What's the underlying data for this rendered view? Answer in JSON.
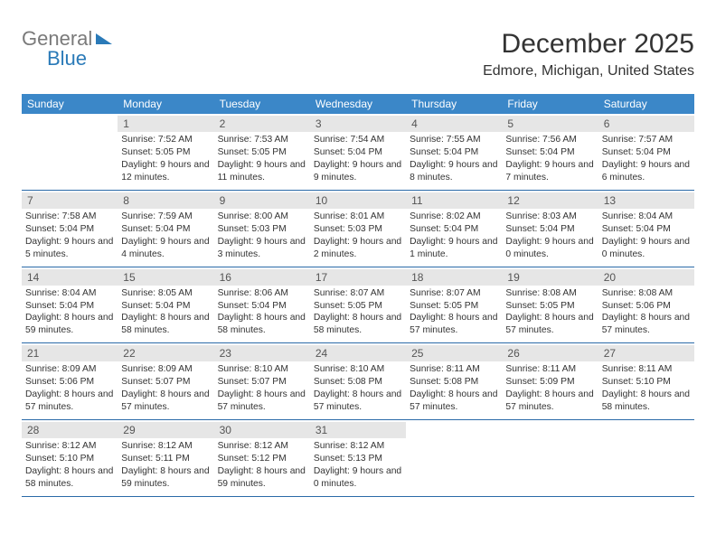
{
  "brand": {
    "line1": "General",
    "line2": "Blue"
  },
  "title": "December 2025",
  "location": "Edmore, Michigan, United States",
  "dayHeaders": [
    "Sunday",
    "Monday",
    "Tuesday",
    "Wednesday",
    "Thursday",
    "Friday",
    "Saturday"
  ],
  "colors": {
    "headerBg": "#3b87c8",
    "headerText": "#ffffff",
    "dayNumBg": "#e6e6e6",
    "rowBorder": "#2a6aa8",
    "text": "#333333",
    "logoGray": "#7a7a7a",
    "logoBlue": "#2a7ab8",
    "background": "#ffffff"
  },
  "weeks": [
    [
      {
        "n": "",
        "empty": true
      },
      {
        "n": "1",
        "sr": "Sunrise: 7:52 AM",
        "ss": "Sunset: 5:05 PM",
        "dl": "Daylight: 9 hours and 12 minutes."
      },
      {
        "n": "2",
        "sr": "Sunrise: 7:53 AM",
        "ss": "Sunset: 5:05 PM",
        "dl": "Daylight: 9 hours and 11 minutes."
      },
      {
        "n": "3",
        "sr": "Sunrise: 7:54 AM",
        "ss": "Sunset: 5:04 PM",
        "dl": "Daylight: 9 hours and 9 minutes."
      },
      {
        "n": "4",
        "sr": "Sunrise: 7:55 AM",
        "ss": "Sunset: 5:04 PM",
        "dl": "Daylight: 9 hours and 8 minutes."
      },
      {
        "n": "5",
        "sr": "Sunrise: 7:56 AM",
        "ss": "Sunset: 5:04 PM",
        "dl": "Daylight: 9 hours and 7 minutes."
      },
      {
        "n": "6",
        "sr": "Sunrise: 7:57 AM",
        "ss": "Sunset: 5:04 PM",
        "dl": "Daylight: 9 hours and 6 minutes."
      }
    ],
    [
      {
        "n": "7",
        "sr": "Sunrise: 7:58 AM",
        "ss": "Sunset: 5:04 PM",
        "dl": "Daylight: 9 hours and 5 minutes."
      },
      {
        "n": "8",
        "sr": "Sunrise: 7:59 AM",
        "ss": "Sunset: 5:04 PM",
        "dl": "Daylight: 9 hours and 4 minutes."
      },
      {
        "n": "9",
        "sr": "Sunrise: 8:00 AM",
        "ss": "Sunset: 5:03 PM",
        "dl": "Daylight: 9 hours and 3 minutes."
      },
      {
        "n": "10",
        "sr": "Sunrise: 8:01 AM",
        "ss": "Sunset: 5:03 PM",
        "dl": "Daylight: 9 hours and 2 minutes."
      },
      {
        "n": "11",
        "sr": "Sunrise: 8:02 AM",
        "ss": "Sunset: 5:04 PM",
        "dl": "Daylight: 9 hours and 1 minute."
      },
      {
        "n": "12",
        "sr": "Sunrise: 8:03 AM",
        "ss": "Sunset: 5:04 PM",
        "dl": "Daylight: 9 hours and 0 minutes."
      },
      {
        "n": "13",
        "sr": "Sunrise: 8:04 AM",
        "ss": "Sunset: 5:04 PM",
        "dl": "Daylight: 9 hours and 0 minutes."
      }
    ],
    [
      {
        "n": "14",
        "sr": "Sunrise: 8:04 AM",
        "ss": "Sunset: 5:04 PM",
        "dl": "Daylight: 8 hours and 59 minutes."
      },
      {
        "n": "15",
        "sr": "Sunrise: 8:05 AM",
        "ss": "Sunset: 5:04 PM",
        "dl": "Daylight: 8 hours and 58 minutes."
      },
      {
        "n": "16",
        "sr": "Sunrise: 8:06 AM",
        "ss": "Sunset: 5:04 PM",
        "dl": "Daylight: 8 hours and 58 minutes."
      },
      {
        "n": "17",
        "sr": "Sunrise: 8:07 AM",
        "ss": "Sunset: 5:05 PM",
        "dl": "Daylight: 8 hours and 58 minutes."
      },
      {
        "n": "18",
        "sr": "Sunrise: 8:07 AM",
        "ss": "Sunset: 5:05 PM",
        "dl": "Daylight: 8 hours and 57 minutes."
      },
      {
        "n": "19",
        "sr": "Sunrise: 8:08 AM",
        "ss": "Sunset: 5:05 PM",
        "dl": "Daylight: 8 hours and 57 minutes."
      },
      {
        "n": "20",
        "sr": "Sunrise: 8:08 AM",
        "ss": "Sunset: 5:06 PM",
        "dl": "Daylight: 8 hours and 57 minutes."
      }
    ],
    [
      {
        "n": "21",
        "sr": "Sunrise: 8:09 AM",
        "ss": "Sunset: 5:06 PM",
        "dl": "Daylight: 8 hours and 57 minutes."
      },
      {
        "n": "22",
        "sr": "Sunrise: 8:09 AM",
        "ss": "Sunset: 5:07 PM",
        "dl": "Daylight: 8 hours and 57 minutes."
      },
      {
        "n": "23",
        "sr": "Sunrise: 8:10 AM",
        "ss": "Sunset: 5:07 PM",
        "dl": "Daylight: 8 hours and 57 minutes."
      },
      {
        "n": "24",
        "sr": "Sunrise: 8:10 AM",
        "ss": "Sunset: 5:08 PM",
        "dl": "Daylight: 8 hours and 57 minutes."
      },
      {
        "n": "25",
        "sr": "Sunrise: 8:11 AM",
        "ss": "Sunset: 5:08 PM",
        "dl": "Daylight: 8 hours and 57 minutes."
      },
      {
        "n": "26",
        "sr": "Sunrise: 8:11 AM",
        "ss": "Sunset: 5:09 PM",
        "dl": "Daylight: 8 hours and 57 minutes."
      },
      {
        "n": "27",
        "sr": "Sunrise: 8:11 AM",
        "ss": "Sunset: 5:10 PM",
        "dl": "Daylight: 8 hours and 58 minutes."
      }
    ],
    [
      {
        "n": "28",
        "sr": "Sunrise: 8:12 AM",
        "ss": "Sunset: 5:10 PM",
        "dl": "Daylight: 8 hours and 58 minutes."
      },
      {
        "n": "29",
        "sr": "Sunrise: 8:12 AM",
        "ss": "Sunset: 5:11 PM",
        "dl": "Daylight: 8 hours and 59 minutes."
      },
      {
        "n": "30",
        "sr": "Sunrise: 8:12 AM",
        "ss": "Sunset: 5:12 PM",
        "dl": "Daylight: 8 hours and 59 minutes."
      },
      {
        "n": "31",
        "sr": "Sunrise: 8:12 AM",
        "ss": "Sunset: 5:13 PM",
        "dl": "Daylight: 9 hours and 0 minutes."
      },
      {
        "n": "",
        "empty": true
      },
      {
        "n": "",
        "empty": true
      },
      {
        "n": "",
        "empty": true
      }
    ]
  ]
}
